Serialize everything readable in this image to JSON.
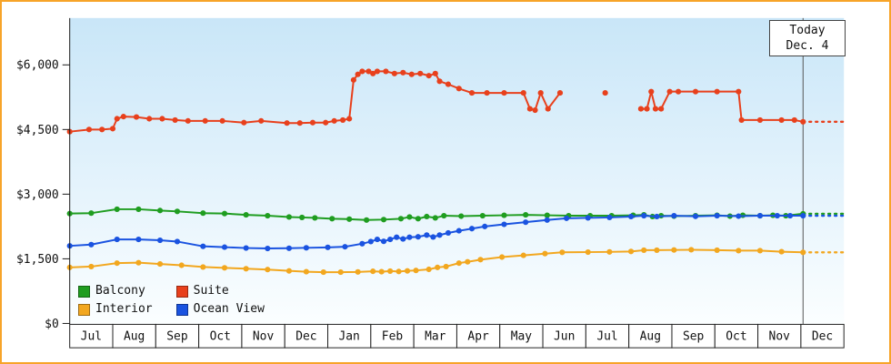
{
  "chart_data": {
    "type": "line",
    "title": "",
    "y_axis": {
      "ticks": [
        {
          "label": "$0",
          "value": 0
        },
        {
          "label": "$1,500",
          "value": 1500
        },
        {
          "label": "$3,000",
          "value": 3000
        },
        {
          "label": "$4,500",
          "value": 4500
        },
        {
          "label": "$6,000",
          "value": 6000
        }
      ],
      "range": [
        0,
        6300
      ]
    },
    "x_axis": {
      "labels": [
        "Jul",
        "Aug",
        "Sep",
        "Oct",
        "Nov",
        "Dec",
        "Jan",
        "Feb",
        "Mar",
        "Apr",
        "May",
        "Jun",
        "Jul",
        "Aug",
        "Sep",
        "Oct",
        "Nov",
        "Dec"
      ],
      "range_months": [
        0,
        18
      ]
    },
    "today": {
      "line1": "Today",
      "line2": "Dec. 4",
      "x": 17.05
    },
    "grid": false,
    "legend_position": "bottom-left",
    "series": [
      {
        "name": "Balcony",
        "color": "#1f9d20",
        "dash_value": 2545,
        "segments": [
          [
            [
              0.0,
              2550
            ],
            [
              0.5,
              2560
            ],
            [
              1.1,
              2650
            ],
            [
              1.6,
              2650
            ],
            [
              2.1,
              2620
            ],
            [
              2.5,
              2600
            ],
            [
              3.1,
              2560
            ],
            [
              3.6,
              2550
            ],
            [
              4.1,
              2520
            ],
            [
              4.6,
              2500
            ],
            [
              5.1,
              2470
            ],
            [
              5.4,
              2460
            ],
            [
              5.7,
              2450
            ],
            [
              6.1,
              2430
            ],
            [
              6.5,
              2420
            ],
            [
              6.9,
              2400
            ],
            [
              7.3,
              2410
            ],
            [
              7.7,
              2430
            ],
            [
              7.9,
              2470
            ],
            [
              8.1,
              2430
            ],
            [
              8.3,
              2480
            ],
            [
              8.5,
              2450
            ],
            [
              8.7,
              2500
            ],
            [
              9.1,
              2490
            ],
            [
              9.6,
              2500
            ],
            [
              10.1,
              2510
            ],
            [
              10.6,
              2520
            ],
            [
              11.1,
              2510
            ],
            [
              11.6,
              2500
            ],
            [
              12.1,
              2500
            ],
            [
              12.6,
              2500
            ],
            [
              13.1,
              2510
            ],
            [
              13.35,
              2520
            ],
            [
              13.55,
              2480
            ],
            [
              13.75,
              2500
            ],
            [
              14.05,
              2490
            ],
            [
              14.55,
              2500
            ],
            [
              15.05,
              2510
            ],
            [
              15.35,
              2490
            ],
            [
              15.65,
              2510
            ],
            [
              16.05,
              2500
            ],
            [
              16.35,
              2510
            ],
            [
              16.65,
              2500
            ],
            [
              17.05,
              2545
            ]
          ]
        ]
      },
      {
        "name": "Suite",
        "color": "#e8401c",
        "dash_value": 4680,
        "segments": [
          [
            [
              0.0,
              4450
            ],
            [
              0.45,
              4500
            ],
            [
              0.75,
              4500
            ],
            [
              1.0,
              4520
            ],
            [
              1.1,
              4750
            ],
            [
              1.25,
              4800
            ],
            [
              1.55,
              4790
            ],
            [
              1.85,
              4750
            ],
            [
              2.15,
              4750
            ],
            [
              2.45,
              4720
            ],
            [
              2.75,
              4700
            ],
            [
              3.15,
              4700
            ],
            [
              3.55,
              4700
            ],
            [
              4.05,
              4660
            ],
            [
              4.45,
              4700
            ],
            [
              5.05,
              4650
            ],
            [
              5.35,
              4650
            ],
            [
              5.65,
              4660
            ],
            [
              5.95,
              4660
            ],
            [
              6.15,
              4700
            ],
            [
              6.35,
              4720
            ],
            [
              6.5,
              4750
            ],
            [
              6.6,
              5650
            ],
            [
              6.7,
              5780
            ],
            [
              6.8,
              5850
            ],
            [
              6.95,
              5850
            ],
            [
              7.05,
              5800
            ],
            [
              7.15,
              5850
            ],
            [
              7.35,
              5850
            ],
            [
              7.55,
              5800
            ],
            [
              7.75,
              5820
            ],
            [
              7.95,
              5780
            ],
            [
              8.15,
              5800
            ],
            [
              8.35,
              5750
            ],
            [
              8.5,
              5800
            ],
            [
              8.6,
              5620
            ],
            [
              8.8,
              5550
            ],
            [
              9.05,
              5450
            ],
            [
              9.35,
              5350
            ],
            [
              9.7,
              5350
            ],
            [
              10.1,
              5350
            ],
            [
              10.55,
              5350
            ],
            [
              10.7,
              4980
            ],
            [
              10.82,
              4950
            ],
            [
              10.95,
              5350
            ],
            [
              11.12,
              4980
            ],
            [
              11.4,
              5350
            ]
          ],
          [
            [
              12.45,
              5350
            ]
          ],
          [
            [
              13.28,
              4980
            ],
            [
              13.42,
              4980
            ],
            [
              13.52,
              5380
            ],
            [
              13.62,
              4980
            ],
            [
              13.75,
              4980
            ],
            [
              13.95,
              5380
            ],
            [
              14.15,
              5380
            ],
            [
              14.55,
              5380
            ],
            [
              15.05,
              5380
            ],
            [
              15.55,
              5380
            ],
            [
              15.62,
              4720
            ],
            [
              16.05,
              4720
            ],
            [
              16.55,
              4720
            ],
            [
              16.85,
              4720
            ],
            [
              17.05,
              4680
            ]
          ]
        ]
      },
      {
        "name": "Interior",
        "color": "#f2a71f",
        "dash_value": 1650,
        "segments": [
          [
            [
              0.0,
              1300
            ],
            [
              0.5,
              1320
            ],
            [
              1.1,
              1400
            ],
            [
              1.6,
              1410
            ],
            [
              2.1,
              1380
            ],
            [
              2.6,
              1350
            ],
            [
              3.1,
              1310
            ],
            [
              3.6,
              1290
            ],
            [
              4.1,
              1270
            ],
            [
              4.6,
              1250
            ],
            [
              5.1,
              1220
            ],
            [
              5.5,
              1200
            ],
            [
              5.9,
              1190
            ],
            [
              6.3,
              1190
            ],
            [
              6.7,
              1195
            ],
            [
              7.05,
              1210
            ],
            [
              7.25,
              1200
            ],
            [
              7.45,
              1215
            ],
            [
              7.65,
              1205
            ],
            [
              7.85,
              1220
            ],
            [
              8.05,
              1230
            ],
            [
              8.35,
              1255
            ],
            [
              8.55,
              1300
            ],
            [
              8.75,
              1320
            ],
            [
              9.05,
              1400
            ],
            [
              9.25,
              1430
            ],
            [
              9.55,
              1480
            ],
            [
              10.05,
              1540
            ],
            [
              10.55,
              1580
            ],
            [
              11.05,
              1620
            ],
            [
              11.45,
              1650
            ],
            [
              12.05,
              1655
            ],
            [
              12.55,
              1660
            ],
            [
              13.05,
              1670
            ],
            [
              13.35,
              1700
            ],
            [
              13.65,
              1700
            ],
            [
              14.05,
              1705
            ],
            [
              14.45,
              1710
            ],
            [
              15.05,
              1700
            ],
            [
              15.55,
              1690
            ],
            [
              16.05,
              1690
            ],
            [
              16.55,
              1665
            ],
            [
              17.05,
              1650
            ]
          ]
        ]
      },
      {
        "name": "Ocean View",
        "color": "#1a53e0",
        "dash_value": 2500,
        "segments": [
          [
            [
              0.0,
              1800
            ],
            [
              0.5,
              1830
            ],
            [
              1.1,
              1950
            ],
            [
              1.6,
              1950
            ],
            [
              2.1,
              1930
            ],
            [
              2.5,
              1900
            ],
            [
              3.1,
              1790
            ],
            [
              3.6,
              1770
            ],
            [
              4.1,
              1750
            ],
            [
              4.6,
              1740
            ],
            [
              5.1,
              1745
            ],
            [
              5.5,
              1755
            ],
            [
              6.0,
              1765
            ],
            [
              6.4,
              1780
            ],
            [
              6.8,
              1850
            ],
            [
              7.0,
              1900
            ],
            [
              7.15,
              1950
            ],
            [
              7.3,
              1905
            ],
            [
              7.45,
              1950
            ],
            [
              7.6,
              2000
            ],
            [
              7.75,
              1960
            ],
            [
              7.9,
              2000
            ],
            [
              8.1,
              2010
            ],
            [
              8.3,
              2050
            ],
            [
              8.45,
              2005
            ],
            [
              8.6,
              2050
            ],
            [
              8.8,
              2100
            ],
            [
              9.05,
              2150
            ],
            [
              9.35,
              2200
            ],
            [
              9.65,
              2250
            ],
            [
              10.1,
              2300
            ],
            [
              10.6,
              2350
            ],
            [
              11.1,
              2400
            ],
            [
              11.55,
              2440
            ],
            [
              12.05,
              2450
            ],
            [
              12.55,
              2460
            ],
            [
              13.05,
              2480
            ],
            [
              13.35,
              2500
            ],
            [
              13.65,
              2480
            ],
            [
              14.05,
              2500
            ],
            [
              14.55,
              2485
            ],
            [
              15.05,
              2500
            ],
            [
              15.55,
              2490
            ],
            [
              16.05,
              2500
            ],
            [
              16.45,
              2500
            ],
            [
              16.75,
              2500
            ],
            [
              17.05,
              2500
            ]
          ]
        ]
      }
    ],
    "colors": {
      "frame_border": "#f7a429",
      "plot_bg_top": "#c9e6f8",
      "plot_bg_bottom": "#fbfeff",
      "axis": "#1a1a1a",
      "today_line": "#555555"
    }
  }
}
